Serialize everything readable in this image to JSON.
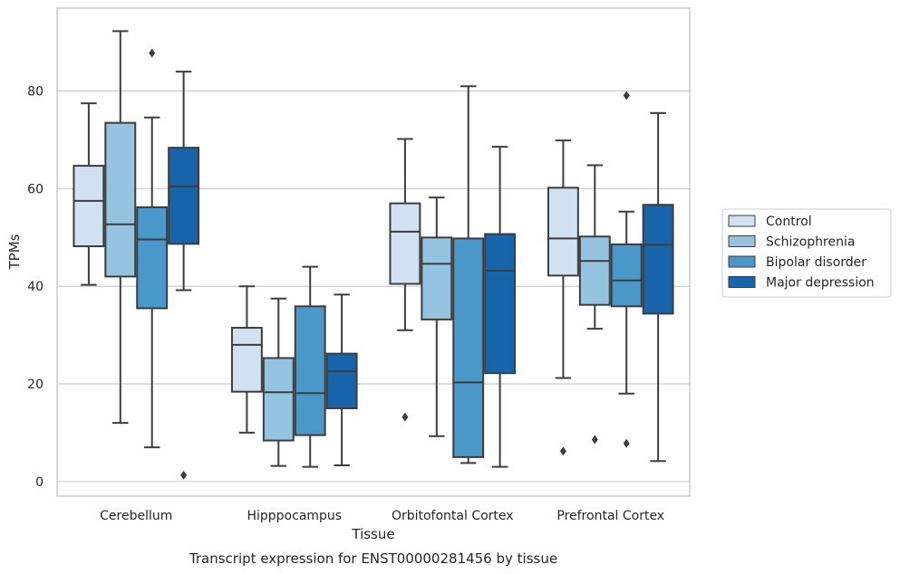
{
  "chart_data": {
    "type": "box",
    "xlabel": "Tissue",
    "ylabel": "TPMs",
    "caption": "Transcript expression for ENST00000281456 by tissue",
    "ylim": [
      -3,
      97
    ],
    "yticks": [
      0,
      20,
      40,
      60,
      80
    ],
    "grid": "horizontal",
    "legend_position": "right",
    "categories": [
      "Cerebellum",
      "Hipppocampus",
      "Orbitofontal Cortex",
      "Prefrontal Cortex"
    ],
    "series": [
      {
        "name": "Control",
        "color": "#d0e1f2",
        "boxes": [
          {
            "whisker_low": 40.3,
            "q1": 48.2,
            "median": 57.5,
            "q3": 64.7,
            "whisker_high": 77.5,
            "outliers": []
          },
          {
            "whisker_low": 10.0,
            "q1": 18.4,
            "median": 28.0,
            "q3": 31.5,
            "whisker_high": 40.0,
            "outliers": []
          },
          {
            "whisker_low": 31.0,
            "q1": 40.5,
            "median": 51.2,
            "q3": 57.0,
            "whisker_high": 70.2,
            "outliers": [
              13.2
            ]
          },
          {
            "whisker_low": 21.2,
            "q1": 42.2,
            "median": 49.8,
            "q3": 60.2,
            "whisker_high": 69.9,
            "outliers": [
              6.2
            ]
          }
        ]
      },
      {
        "name": "Schizophrenia",
        "color": "#94c4df",
        "boxes": [
          {
            "whisker_low": 12.0,
            "q1": 42.0,
            "median": 52.7,
            "q3": 73.5,
            "whisker_high": 92.3,
            "outliers": []
          },
          {
            "whisker_low": 3.2,
            "q1": 8.4,
            "median": 18.3,
            "q3": 25.3,
            "whisker_high": 37.5,
            "outliers": []
          },
          {
            "whisker_low": 9.3,
            "q1": 33.2,
            "median": 44.6,
            "q3": 50.0,
            "whisker_high": 58.2,
            "outliers": []
          },
          {
            "whisker_low": 31.3,
            "q1": 36.2,
            "median": 45.2,
            "q3": 50.2,
            "whisker_high": 64.8,
            "outliers": [
              8.6
            ]
          }
        ]
      },
      {
        "name": "Bipolar disorder",
        "color": "#4a98c9",
        "boxes": [
          {
            "whisker_low": 7.0,
            "q1": 35.5,
            "median": 49.6,
            "q3": 56.2,
            "whisker_high": 74.6,
            "outliers": [
              87.8
            ]
          },
          {
            "whisker_low": 3.0,
            "q1": 9.5,
            "median": 18.1,
            "q3": 35.9,
            "whisker_high": 44.0,
            "outliers": []
          },
          {
            "whisker_low": 3.8,
            "q1": 5.0,
            "median": 20.3,
            "q3": 49.8,
            "whisker_high": 81.0,
            "outliers": []
          },
          {
            "whisker_low": 18.0,
            "q1": 35.9,
            "median": 41.2,
            "q3": 48.6,
            "whisker_high": 55.3,
            "outliers": [
              79.1,
              7.8
            ]
          }
        ]
      },
      {
        "name": "Major depression",
        "color": "#1764ab",
        "boxes": [
          {
            "whisker_low": 39.2,
            "q1": 48.7,
            "median": 60.5,
            "q3": 68.4,
            "whisker_high": 84.0,
            "outliers": [
              1.3
            ]
          },
          {
            "whisker_low": 3.3,
            "q1": 15.0,
            "median": 22.6,
            "q3": 26.2,
            "whisker_high": 38.3,
            "outliers": []
          },
          {
            "whisker_low": 3.0,
            "q1": 22.2,
            "median": 43.2,
            "q3": 50.7,
            "whisker_high": 68.6,
            "outliers": []
          },
          {
            "whisker_low": 4.2,
            "q1": 34.4,
            "median": 48.5,
            "q3": 56.7,
            "whisker_high": 75.5,
            "outliers": []
          }
        ]
      }
    ]
  }
}
